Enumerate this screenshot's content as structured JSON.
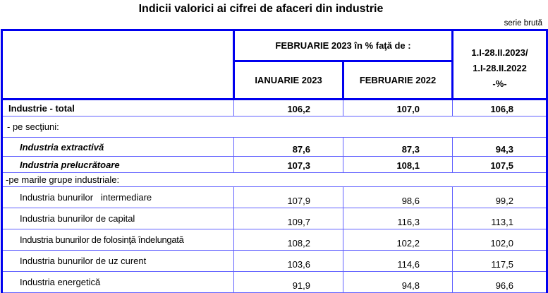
{
  "title": "Indicii valorici ai cifrei de afaceri din industrie",
  "note": "serie brută",
  "header": {
    "group": "FEBRUARIE 2023  în % faţă de :",
    "col1": "IANUARIE 2023",
    "col2": "FEBRUARIE 2022",
    "col3_line1": "1.I-28.II.2023/",
    "col3_line2": "1.I-28.II.2022",
    "col3_line3": "-%-"
  },
  "rows": [
    {
      "label": "Industrie - total",
      "values": [
        "106,2",
        "107,0",
        "106,8"
      ]
    },
    {
      "label": "- pe secţiuni:"
    },
    {
      "label": "Industria extractivă",
      "values": [
        "87,6",
        "87,3",
        "94,3"
      ]
    },
    {
      "label": "Industria prelucrătoare",
      "values": [
        "107,3",
        "108,1",
        "107,5"
      ]
    },
    {
      "label": "-pe marile grupe industriale:"
    },
    {
      "label": "Industria bunurilor   intermediare",
      "values": [
        "107,9",
        "98,6",
        "99,2"
      ]
    },
    {
      "label": "Industria bunurilor de capital",
      "values": [
        "109,7",
        "116,3",
        "113,1"
      ]
    },
    {
      "label": "Industria bunurilor de folosinţă îndelungată",
      "values": [
        "108,2",
        "102,2",
        "102,0"
      ]
    },
    {
      "label": "Industria bunurilor de uz curent",
      "values": [
        "103,6",
        "114,6",
        "117,5"
      ]
    },
    {
      "label": "Industria energetică",
      "values": [
        "91,9",
        "94,8",
        "96,6"
      ]
    }
  ]
}
